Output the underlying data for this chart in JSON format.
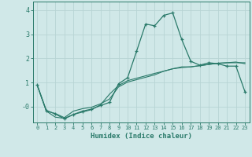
{
  "xlabel": "Humidex (Indice chaleur)",
  "bg_color": "#d0e8e8",
  "grid_color": "#b8d4d4",
  "line_color": "#2a7a6a",
  "xlim": [
    -0.5,
    23.5
  ],
  "ylim": [
    -0.65,
    4.35
  ],
  "xticks": [
    0,
    1,
    2,
    3,
    4,
    5,
    6,
    7,
    8,
    9,
    10,
    11,
    12,
    13,
    14,
    15,
    16,
    17,
    18,
    19,
    20,
    21,
    22,
    23
  ],
  "yticks": [
    0,
    1,
    2,
    3,
    4
  ],
  "ytick_labels": [
    "-0",
    "1",
    "2",
    "3",
    "4"
  ],
  "curve1_x": [
    0,
    1,
    2,
    3,
    4,
    5,
    6,
    7,
    8,
    9,
    10,
    11,
    12,
    13,
    14,
    15,
    16,
    17,
    18,
    19,
    20,
    21,
    22,
    23
  ],
  "curve1_y": [
    0.9,
    -0.15,
    -0.3,
    -0.5,
    -0.32,
    -0.18,
    -0.1,
    0.05,
    0.18,
    0.95,
    1.2,
    2.3,
    3.42,
    3.35,
    3.78,
    3.88,
    2.78,
    1.88,
    1.72,
    1.82,
    1.78,
    1.68,
    1.68,
    0.62
  ],
  "curve2_x": [
    0,
    1,
    2,
    3,
    4,
    5,
    6,
    7,
    8,
    9,
    10,
    11,
    12,
    13,
    14,
    15,
    16,
    17,
    18,
    19,
    20,
    21,
    22,
    23
  ],
  "curve2_y": [
    0.88,
    -0.18,
    -0.28,
    -0.45,
    -0.18,
    -0.08,
    -0.02,
    0.12,
    0.32,
    0.82,
    1.02,
    1.12,
    1.22,
    1.32,
    1.47,
    1.57,
    1.65,
    1.65,
    1.7,
    1.75,
    1.8,
    1.82,
    1.82,
    1.82
  ],
  "curve3_x": [
    0,
    1,
    2,
    3,
    4,
    5,
    6,
    7,
    8,
    9,
    10,
    11,
    12,
    13,
    14,
    15,
    16,
    17,
    18,
    19,
    20,
    21,
    22,
    23
  ],
  "curve3_y": [
    0.88,
    -0.18,
    -0.43,
    -0.48,
    -0.32,
    -0.22,
    -0.12,
    0.08,
    0.52,
    0.88,
    1.08,
    1.18,
    1.28,
    1.38,
    1.47,
    1.57,
    1.62,
    1.65,
    1.7,
    1.75,
    1.8,
    1.82,
    1.85,
    1.78
  ]
}
